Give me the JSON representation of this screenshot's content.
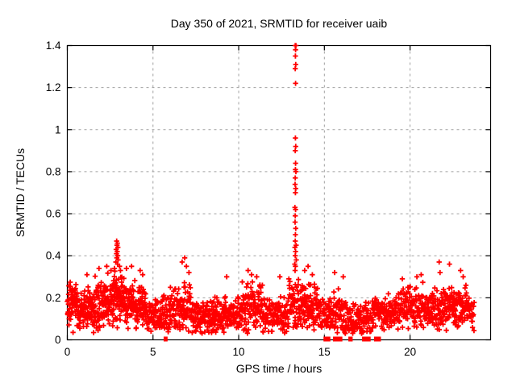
{
  "window": {
    "title": "Day 350 of 2021, SRMTID for receiver uaib"
  },
  "chart_data": {
    "type": "scatter",
    "title": "Day 350 of 2021, SRMTID for receiver uaib",
    "xlabel": "GPS time / hours",
    "ylabel": "SRMTID / TECUs",
    "xlim": [
      0,
      24.7
    ],
    "ylim": [
      0,
      1.4
    ],
    "xticks": [
      0,
      5,
      10,
      15,
      20
    ],
    "yticks": [
      0,
      0.2,
      0.4,
      0.6,
      0.8,
      1,
      1.2,
      1.4
    ],
    "grid": true,
    "grid_style": "dashed",
    "legend": "none",
    "marker": {
      "shape": "plus",
      "size": 7,
      "color": "#ff0000"
    },
    "colors": {
      "points": "#ff0000",
      "frame": "#000000",
      "grid": "#a0a0a0",
      "background": "#ffffff",
      "text": "#000000"
    },
    "spike_points": [
      [
        13.3,
        1.4
      ],
      [
        13.34,
        1.4
      ],
      [
        13.32,
        1.38
      ],
      [
        13.31,
        1.35
      ],
      [
        13.33,
        1.31
      ],
      [
        13.3,
        1.29
      ],
      [
        13.32,
        1.22
      ],
      [
        13.31,
        0.96
      ],
      [
        13.33,
        0.92
      ],
      [
        13.3,
        0.9
      ],
      [
        13.32,
        0.84
      ],
      [
        13.31,
        0.81
      ],
      [
        13.34,
        0.8
      ],
      [
        13.3,
        0.77
      ],
      [
        13.29,
        0.74
      ],
      [
        13.33,
        0.72
      ],
      [
        13.31,
        0.7
      ],
      [
        13.28,
        0.63
      ],
      [
        13.32,
        0.62
      ],
      [
        13.3,
        0.59
      ],
      [
        13.29,
        0.56
      ],
      [
        13.33,
        0.53
      ],
      [
        13.31,
        0.5
      ],
      [
        13.3,
        0.47
      ],
      [
        13.35,
        0.45
      ],
      [
        13.28,
        0.44
      ],
      [
        13.32,
        0.42
      ],
      [
        13.3,
        0.4
      ],
      [
        13.36,
        0.38
      ],
      [
        13.27,
        0.36
      ],
      [
        13.31,
        0.35
      ],
      [
        13.29,
        0.33
      ]
    ],
    "high_points": [
      [
        2.88,
        0.47
      ],
      [
        2.92,
        0.46
      ],
      [
        2.9,
        0.45
      ],
      [
        2.95,
        0.44
      ],
      [
        2.85,
        0.43
      ],
      [
        2.91,
        0.42
      ],
      [
        2.87,
        0.41
      ],
      [
        2.94,
        0.4
      ],
      [
        2.89,
        0.39
      ],
      [
        2.96,
        0.38
      ],
      [
        2.83,
        0.37
      ],
      [
        2.93,
        0.36
      ],
      [
        3.05,
        0.35
      ],
      [
        2.75,
        0.34
      ],
      [
        3.1,
        0.33
      ],
      [
        1.15,
        0.31
      ],
      [
        1.85,
        0.34
      ],
      [
        2.3,
        0.35
      ],
      [
        2.55,
        0.33
      ],
      [
        3.45,
        0.34
      ],
      [
        3.75,
        0.35
      ],
      [
        4.25,
        0.33
      ],
      [
        4.4,
        0.31
      ],
      [
        6.7,
        0.37
      ],
      [
        6.85,
        0.39
      ],
      [
        6.95,
        0.35
      ],
      [
        7.1,
        0.32
      ],
      [
        9.3,
        0.3
      ],
      [
        10.55,
        0.33
      ],
      [
        10.75,
        0.31
      ],
      [
        11.05,
        0.3
      ],
      [
        12.4,
        0.3
      ],
      [
        13.85,
        0.33
      ],
      [
        14.05,
        0.35
      ],
      [
        14.3,
        0.31
      ],
      [
        15.6,
        0.32
      ],
      [
        16.1,
        0.3
      ],
      [
        19.55,
        0.29
      ],
      [
        20.4,
        0.3
      ],
      [
        20.65,
        0.31
      ],
      [
        21.7,
        0.37
      ],
      [
        21.75,
        0.32
      ],
      [
        22.3,
        0.36
      ],
      [
        22.95,
        0.33
      ],
      [
        23.1,
        0.3
      ]
    ],
    "band_segments": [
      [
        0.0,
        0.7,
        72,
        0.16,
        0.06,
        0.3
      ],
      [
        0.7,
        1.6,
        85,
        0.14,
        0.06,
        0.3
      ],
      [
        1.6,
        2.6,
        98,
        0.17,
        0.07,
        0.34
      ],
      [
        2.6,
        3.4,
        91,
        0.2,
        0.08,
        0.4
      ],
      [
        3.4,
        4.6,
        111,
        0.17,
        0.07,
        0.33
      ],
      [
        4.6,
        5.9,
        104,
        0.12,
        0.05,
        0.24
      ],
      [
        5.9,
        7.2,
        111,
        0.15,
        0.07,
        0.33
      ],
      [
        7.2,
        8.6,
        117,
        0.11,
        0.05,
        0.24
      ],
      [
        8.6,
        10.2,
        130,
        0.12,
        0.05,
        0.26
      ],
      [
        10.2,
        11.4,
        104,
        0.16,
        0.07,
        0.31
      ],
      [
        11.4,
        12.9,
        124,
        0.12,
        0.05,
        0.25
      ],
      [
        12.9,
        13.5,
        52,
        0.18,
        0.08,
        0.34
      ],
      [
        13.5,
        14.6,
        98,
        0.16,
        0.07,
        0.32
      ],
      [
        14.6,
        16.2,
        117,
        0.12,
        0.06,
        0.27
      ],
      [
        16.2,
        17.8,
        111,
        0.1,
        0.05,
        0.24
      ],
      [
        17.8,
        19.3,
        117,
        0.13,
        0.05,
        0.26
      ],
      [
        19.3,
        20.9,
        124,
        0.15,
        0.06,
        0.29
      ],
      [
        20.9,
        22.2,
        111,
        0.15,
        0.06,
        0.3
      ],
      [
        22.2,
        23.4,
        111,
        0.16,
        0.06,
        0.3
      ],
      [
        23.4,
        23.75,
        23,
        0.12,
        0.05,
        0.22
      ]
    ],
    "zero_runs": [
      [
        5.62,
        5.85
      ],
      [
        14.95,
        15.35
      ],
      [
        15.5,
        16.05
      ],
      [
        16.4,
        16.65
      ],
      [
        17.2,
        17.7
      ],
      [
        17.9,
        18.3
      ]
    ],
    "seed": 7
  }
}
